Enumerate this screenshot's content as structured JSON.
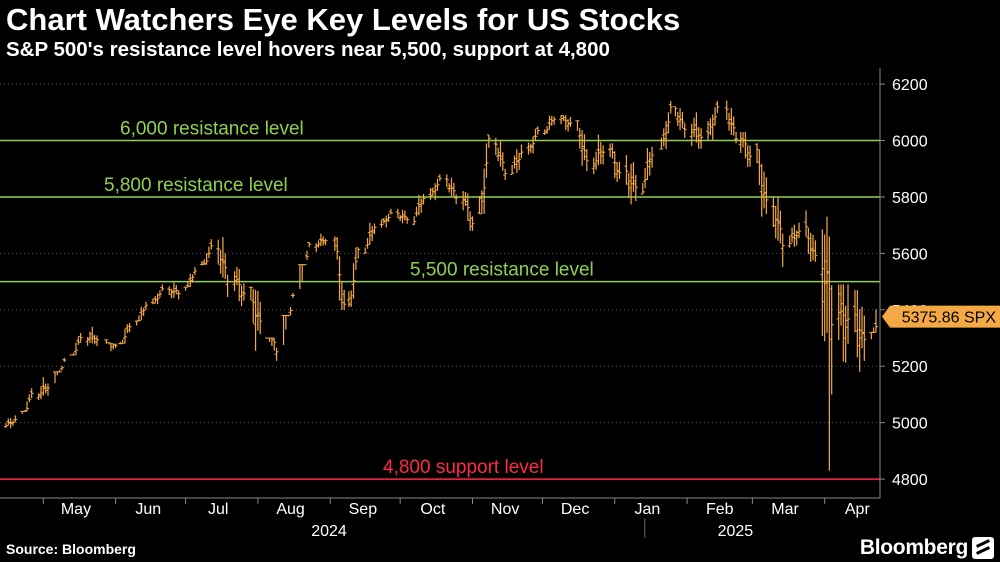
{
  "header": {
    "title": "Chart Watchers Eye Key Levels for US Stocks",
    "subtitle": "S&P 500's resistance level hovers near 5,500, support at 4,800"
  },
  "footer": {
    "source": "Source: Bloomberg",
    "brand": "Bloomberg"
  },
  "colors": {
    "background": "#000000",
    "series": "#f5a945",
    "resistance": "#8fd14f",
    "support": "#ff2a4a",
    "axis_text": "#ffffff"
  },
  "chart_data": {
    "type": "ohlc",
    "series_name": "SPX",
    "last_label": "5375.86 SPX",
    "last_value": 5375.86,
    "ylim": [
      4740,
      6250
    ],
    "y_ticks": [
      4800,
      5000,
      5200,
      5400,
      5600,
      5800,
      6000,
      6200
    ],
    "x_range": [
      "2024-04-15",
      "2025-04-23"
    ],
    "x_month_labels": [
      "May",
      "Jun",
      "Jul",
      "Aug",
      "Sep",
      "Oct",
      "Nov",
      "Dec",
      "Jan",
      "Feb",
      "Mar",
      "Apr"
    ],
    "x_year_labels": [
      "2024",
      "2025"
    ],
    "reference_lines": [
      {
        "value": 6000,
        "label": "6,000 resistance level",
        "kind": "resistance"
      },
      {
        "value": 5800,
        "label": "5,800 resistance level",
        "kind": "resistance"
      },
      {
        "value": 5500,
        "label": "5,500 resistance level",
        "kind": "resistance"
      },
      {
        "value": 4800,
        "label": "4,800 support level",
        "kind": "support"
      }
    ],
    "x": [
      "2024-04-15",
      "2024-04-22",
      "2024-04-29",
      "2024-05-06",
      "2024-05-13",
      "2024-05-20",
      "2024-05-28",
      "2024-06-03",
      "2024-06-10",
      "2024-06-17",
      "2024-06-24",
      "2024-07-01",
      "2024-07-08",
      "2024-07-15",
      "2024-07-22",
      "2024-07-29",
      "2024-08-05",
      "2024-08-12",
      "2024-08-19",
      "2024-08-26",
      "2024-09-03",
      "2024-09-09",
      "2024-09-16",
      "2024-09-23",
      "2024-09-30",
      "2024-10-07",
      "2024-10-14",
      "2024-10-21",
      "2024-10-28",
      "2024-11-04",
      "2024-11-11",
      "2024-11-18",
      "2024-11-25",
      "2024-12-02",
      "2024-12-09",
      "2024-12-16",
      "2024-12-23",
      "2024-12-30",
      "2025-01-06",
      "2025-01-13",
      "2025-01-21",
      "2025-01-27",
      "2025-02-03",
      "2025-02-10",
      "2025-02-18",
      "2025-02-24",
      "2025-03-03",
      "2025-03-10",
      "2025-03-17",
      "2025-03-24",
      "2025-03-31",
      "2025-04-07",
      "2025-04-14",
      "2025-04-21"
    ],
    "close": [
      5010,
      5100,
      5130,
      5220,
      5300,
      5300,
      5270,
      5340,
      5420,
      5470,
      5460,
      5540,
      5620,
      5510,
      5460,
      5340,
      5260,
      5450,
      5630,
      5650,
      5410,
      5610,
      5700,
      5740,
      5720,
      5800,
      5860,
      5800,
      5710,
      5990,
      5890,
      5960,
      6030,
      6080,
      6060,
      5920,
      5970,
      5880,
      5830,
      5960,
      6110,
      6040,
      6020,
      6110,
      6010,
      5950,
      5770,
      5640,
      5680,
      5580,
      5400,
      5360,
      5280,
      5380
    ],
    "low": [
      4980,
      5040,
      5080,
      5180,
      5240,
      5240,
      5200,
      5280,
      5360,
      5420,
      5420,
      5480,
      5560,
      5420,
      5390,
      5120,
      5150,
      5380,
      5560,
      5590,
      5400,
      5410,
      5600,
      5690,
      5680,
      5700,
      5780,
      5770,
      5680,
      5740,
      5860,
      5880,
      5950,
      6020,
      5990,
      5860,
      5880,
      5830,
      5770,
      5810,
      5970,
      5990,
      5920,
      5990,
      5990,
      5850,
      5680,
      5520,
      5620,
      5570,
      4830,
      4990,
      5100,
      5320
    ],
    "high": [
      5040,
      5130,
      5190,
      5230,
      5330,
      5340,
      5280,
      5370,
      5440,
      5490,
      5510,
      5560,
      5670,
      5660,
      5580,
      5480,
      5300,
      5460,
      5640,
      5670,
      5660,
      5620,
      5730,
      5760,
      5760,
      5820,
      5880,
      5880,
      5840,
      6020,
      6010,
      6020,
      6050,
      6100,
      6090,
      6070,
      6060,
      5990,
      6010,
      6000,
      6140,
      6120,
      6100,
      6140,
      6150,
      6030,
      5990,
      5800,
      5750,
      5790,
      5730,
      5490,
      5470,
      5490
    ]
  }
}
